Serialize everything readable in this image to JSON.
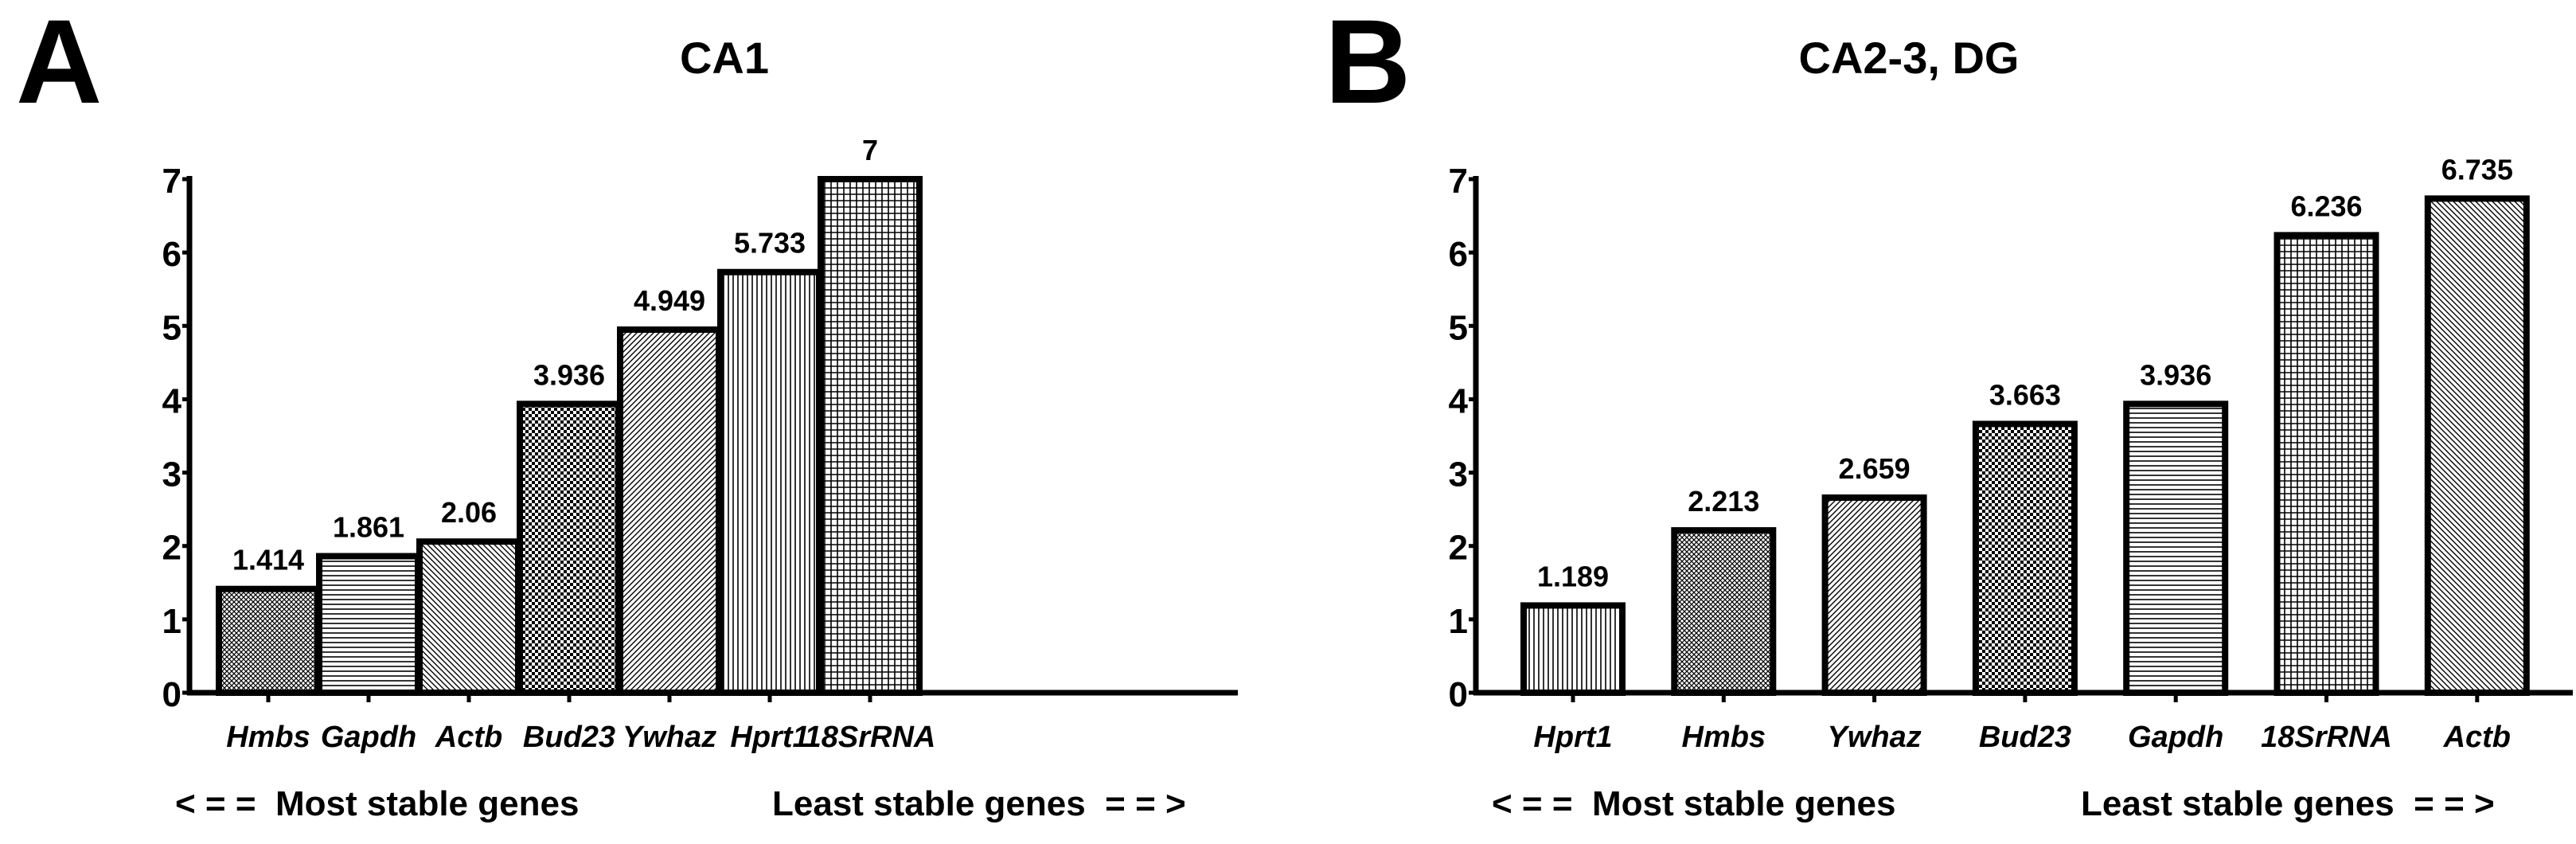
{
  "chart_data": [
    {
      "type": "bar",
      "panel_label": "A",
      "title": "CA1",
      "categories": [
        "Hmbs",
        "Gapdh",
        "Actb",
        "Bud23",
        "Ywhaz",
        "Hprt1",
        "18SrRNA"
      ],
      "values": [
        1.414,
        1.861,
        2.06,
        3.936,
        4.949,
        5.733,
        7
      ],
      "value_labels": [
        "1.414",
        "1.861",
        "2.06",
        "3.936",
        "4.949",
        "5.733",
        "7"
      ],
      "patterns": [
        "dense",
        "hlines",
        "diag-back",
        "checker",
        "diag-fwd",
        "vlines",
        "grid"
      ],
      "y_ticks": [
        "0",
        "1",
        "2",
        "3",
        "4",
        "5",
        "6",
        "7"
      ],
      "ylim": [
        0,
        7
      ],
      "xlabel": "",
      "ylabel": "",
      "footer_left": "< = =  Most stable genes",
      "footer_right": "Least stable genes  = = >"
    },
    {
      "type": "bar",
      "panel_label": "B",
      "title": "CA2-3, DG",
      "categories": [
        "Hprt1",
        "Hmbs",
        "Ywhaz",
        "Bud23",
        "Gapdh",
        "18SrRNA",
        "Actb"
      ],
      "values": [
        1.189,
        2.213,
        2.659,
        3.663,
        3.936,
        6.236,
        6.735
      ],
      "value_labels": [
        "1.189",
        "2.213",
        "2.659",
        "3.663",
        "3.936",
        "6.236",
        "6.735"
      ],
      "patterns": [
        "vlines",
        "dense",
        "diag-fwd",
        "checker",
        "hlines",
        "grid",
        "diag-back"
      ],
      "y_ticks": [
        "0",
        "1",
        "2",
        "3",
        "4",
        "5",
        "6",
        "7"
      ],
      "ylim": [
        0,
        7
      ],
      "xlabel": "",
      "ylabel": "",
      "footer_left": "< = =  Most stable genes",
      "footer_right": "Least stable genes  = = >"
    }
  ]
}
